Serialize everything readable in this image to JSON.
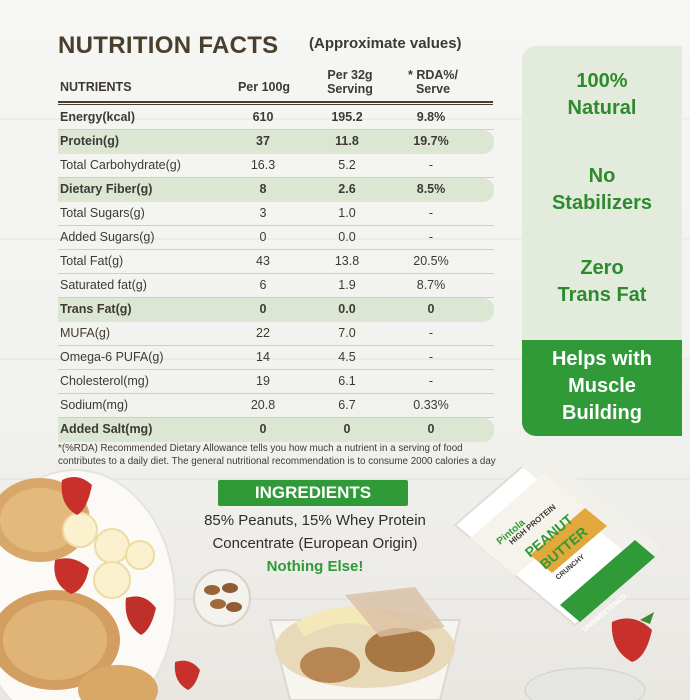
{
  "header": {
    "title": "NUTRITION FACTS",
    "subtitle": "(Approximate values)"
  },
  "table": {
    "columns": [
      "NUTRIENTS",
      "Per 100g",
      "Per 32g Serving",
      "* RDA%/ Serve"
    ],
    "col_32_line1": "Per 32g",
    "col_32_line2": "Serving",
    "col_rda_line1": "* RDA%/",
    "col_rda_line2": "Serve",
    "rows": [
      {
        "name": "Energy(kcal)",
        "per100": "610",
        "per32": "195.2",
        "rda": "9.8%"
      },
      {
        "name": "Protein(g)",
        "per100": "37",
        "per32": "11.8",
        "rda": "19.7%"
      },
      {
        "name": "Total Carbohydrate(g)",
        "per100": "16.3",
        "per32": "5.2",
        "rda": "-"
      },
      {
        "name": "Dietary Fiber(g)",
        "per100": "8",
        "per32": "2.6",
        "rda": "8.5%"
      },
      {
        "name": "Total Sugars(g)",
        "per100": "3",
        "per32": "1.0",
        "rda": "-"
      },
      {
        "name": "Added Sugars(g)",
        "per100": "0",
        "per32": "0.0",
        "rda": "-"
      },
      {
        "name": "Total Fat(g)",
        "per100": "43",
        "per32": "13.8",
        "rda": "20.5%"
      },
      {
        "name": "Saturated fat(g)",
        "per100": "6",
        "per32": "1.9",
        "rda": "8.7%"
      },
      {
        "name": "Trans Fat(g)",
        "per100": "0",
        "per32": "0.0",
        "rda": "0"
      },
      {
        "name": "MUFA(g)",
        "per100": "22",
        "per32": "7.0",
        "rda": "-"
      },
      {
        "name": "Omega-6 PUFA(g)",
        "per100": "14",
        "per32": "4.5",
        "rda": "-"
      },
      {
        "name": "Cholesterol(mg)",
        "per100": "19",
        "per32": "6.1",
        "rda": "-"
      },
      {
        "name": "Sodium(mg)",
        "per100": "20.8",
        "per32": "6.7",
        "rda": "0.33%"
      },
      {
        "name": "Added Salt(mg)",
        "per100": "0",
        "per32": "0",
        "rda": "0"
      }
    ]
  },
  "footnote": "*(%RDA) Recommended Dietary Allowance tells you how much a nutrient in a serving of food contributes to a daily diet. The general nutritional recommendation is to consume 2000 calories a day",
  "badges": [
    {
      "line1": "100%",
      "line2": "Natural",
      "line3": ""
    },
    {
      "line1": "No",
      "line2": "Stabilizers",
      "line3": ""
    },
    {
      "line1": "Zero",
      "line2": "Trans Fat",
      "line3": ""
    },
    {
      "line1": "Helps with",
      "line2": "Muscle",
      "line3": "Building"
    }
  ],
  "ingredients": {
    "heading": "INGREDIENTS",
    "line1": "85% Peanuts, 15% Whey Protein",
    "line2": "Concentrate (European Origin)",
    "line3": "Nothing Else!"
  },
  "product_jar": {
    "brand": "Pintola",
    "band": "HIGH PROTEIN",
    "name_line1": "PEANUT",
    "name_line2": "BUTTER",
    "variant": "CRUNCHY",
    "bottom": "UNSWEETENED"
  },
  "colors": {
    "brand_green": "#2f9a37",
    "highlight_row": "#dbe6d3",
    "badge_bg": "#e3ecdc",
    "title_brown": "#4a3f2c"
  }
}
